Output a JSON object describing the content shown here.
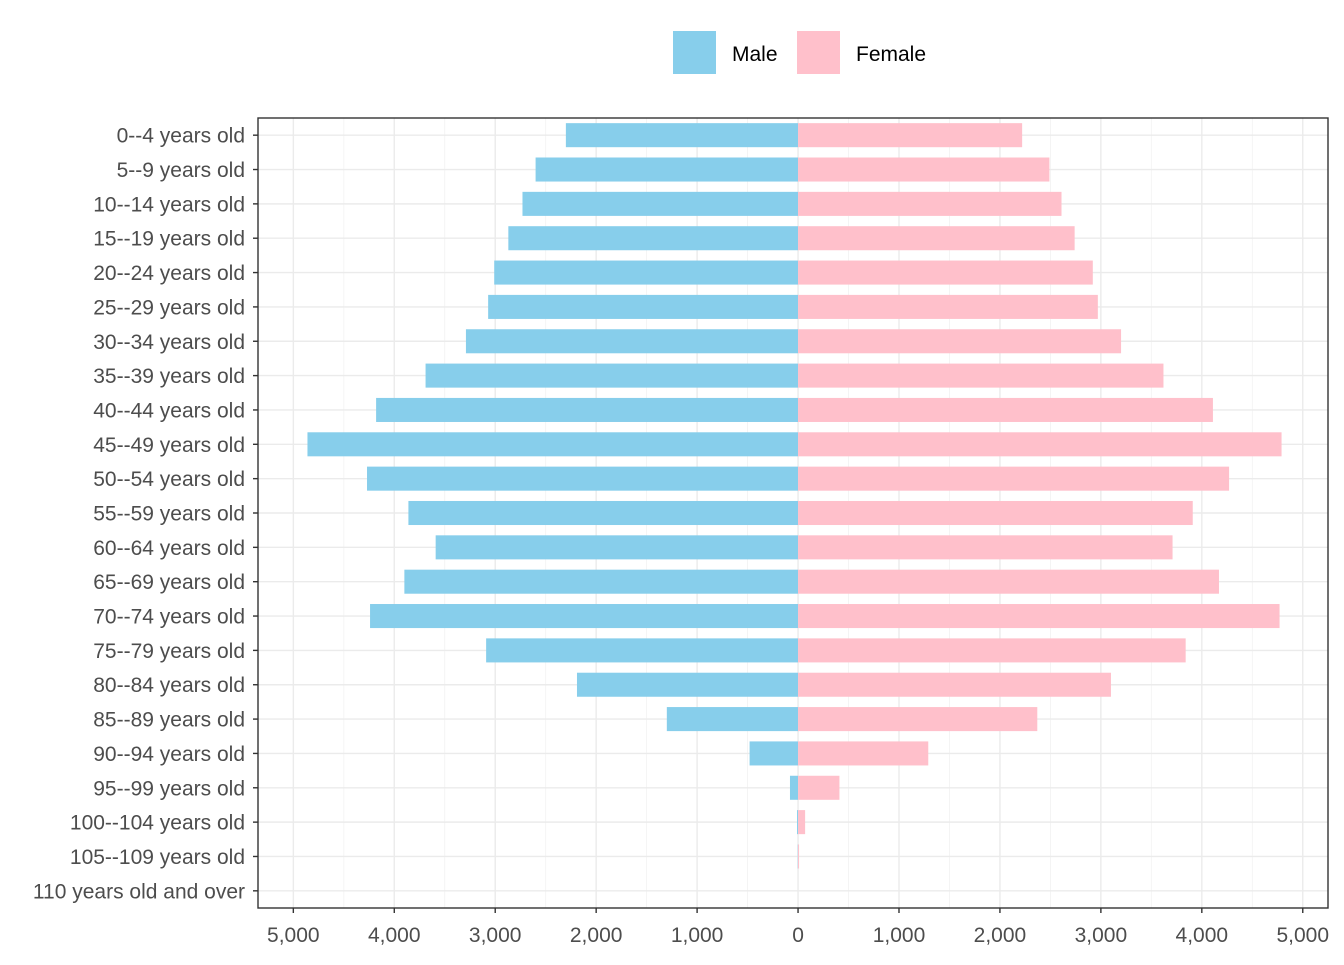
{
  "chart_data": {
    "type": "bar",
    "orientation": "horizontal",
    "layout": "population-pyramid",
    "categories": [
      "0--4 years old",
      "5--9 years old",
      "10--14 years old",
      "15--19 years old",
      "20--24 years old",
      "25--29 years old",
      "30--34 years old",
      "35--39 years old",
      "40--44 years old",
      "45--49 years old",
      "50--54 years old",
      "55--59 years old",
      "60--64 years old",
      "65--69 years old",
      "70--74 years old",
      "75--79 years old",
      "80--84 years old",
      "85--89 years old",
      "90--94 years old",
      "95--99 years old",
      "100--104 years old",
      "105--109 years old",
      "110 years old and over"
    ],
    "series": [
      {
        "name": "Male",
        "color": "#87CEEB",
        "direction": "left",
        "values": [
          2300,
          2600,
          2730,
          2870,
          3010,
          3070,
          3290,
          3690,
          4180,
          4860,
          4270,
          3860,
          3590,
          3900,
          4240,
          3090,
          2190,
          1300,
          480,
          80,
          10,
          3,
          0
        ]
      },
      {
        "name": "Female",
        "color": "#FFC0CB",
        "direction": "right",
        "values": [
          2220,
          2490,
          2610,
          2740,
          2920,
          2970,
          3200,
          3620,
          4110,
          4790,
          4270,
          3910,
          3710,
          4170,
          4770,
          3840,
          3100,
          2370,
          1290,
          410,
          70,
          10,
          0
        ]
      }
    ],
    "x_ticks": [
      -5000,
      -4000,
      -3000,
      -2000,
      -1000,
      0,
      1000,
      2000,
      3000,
      4000,
      5000
    ],
    "x_tick_labels": [
      "5,000",
      "4,000",
      "3,000",
      "2,000",
      "1,000",
      "0",
      "1,000",
      "2,000",
      "3,000",
      "4,000",
      "5,000"
    ],
    "xlim": [
      -5350,
      5250
    ],
    "grid": true,
    "legend_position": "top",
    "title": "",
    "xlabel": "",
    "ylabel": ""
  }
}
